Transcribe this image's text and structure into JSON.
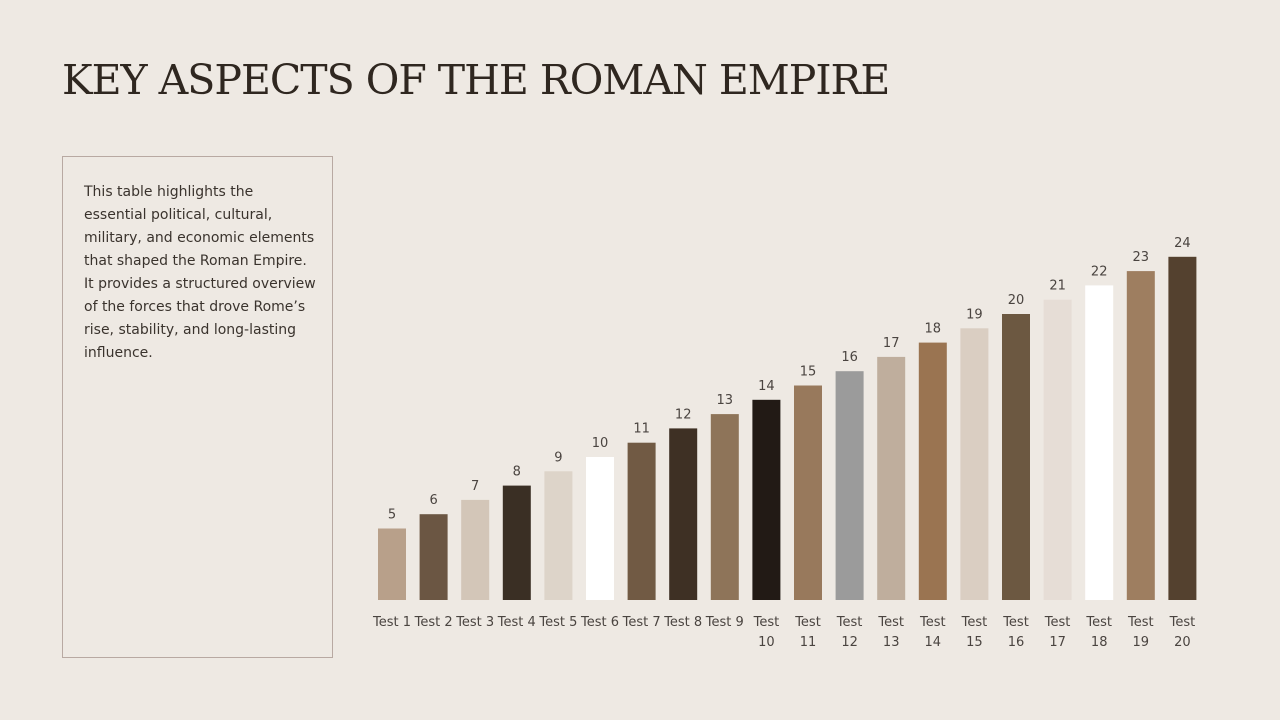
{
  "slide": {
    "title": "KEY ASPECTS OF THE ROMAN EMPIRE",
    "description": "This table highlights the essential political, cultural, military, and economic elements that shaped the Roman Empire. It provides a structured overview of the forces that drove Rome’s rise, stability, and long-lasting influence."
  },
  "colors": {
    "background": "#EEE9E3",
    "title": "#2F2720",
    "box_border": "#B8A9A2"
  },
  "chart_data": {
    "type": "bar",
    "title": "",
    "xlabel": "",
    "ylabel": "",
    "categories": [
      "Test 1",
      "Test 2",
      "Test 3",
      "Test 4",
      "Test 5",
      "Test 6",
      "Test 7",
      "Test 8",
      "Test 9",
      "Test 10",
      "Test 11",
      "Test 12",
      "Test 13",
      "Test 14",
      "Test 15",
      "Test 16",
      "Test 17",
      "Test 18",
      "Test 19",
      "Test 20"
    ],
    "series": [
      {
        "values": [
          5,
          6,
          7,
          8,
          9,
          10,
          11,
          12,
          13,
          14,
          15,
          16,
          17,
          18,
          19,
          20,
          21,
          22,
          23,
          24
        ]
      }
    ],
    "bar_colors": [
      "#B8A08A",
      "#6B5643",
      "#D3C6B8",
      "#3A2F24",
      "#DDD4C9",
      "#FFFFFF",
      "#715A44",
      "#3E3024",
      "#8E7459",
      "#221A15",
      "#98795C",
      "#9B9B9B",
      "#BFAE9D",
      "#9A7451",
      "#DACEC2",
      "#6C5841",
      "#E6DDD6",
      "#FFFFFF",
      "#9E7E60",
      "#54412F"
    ],
    "data_labels": true,
    "ylim": [
      0,
      24
    ],
    "grid": false,
    "legend": "none"
  }
}
